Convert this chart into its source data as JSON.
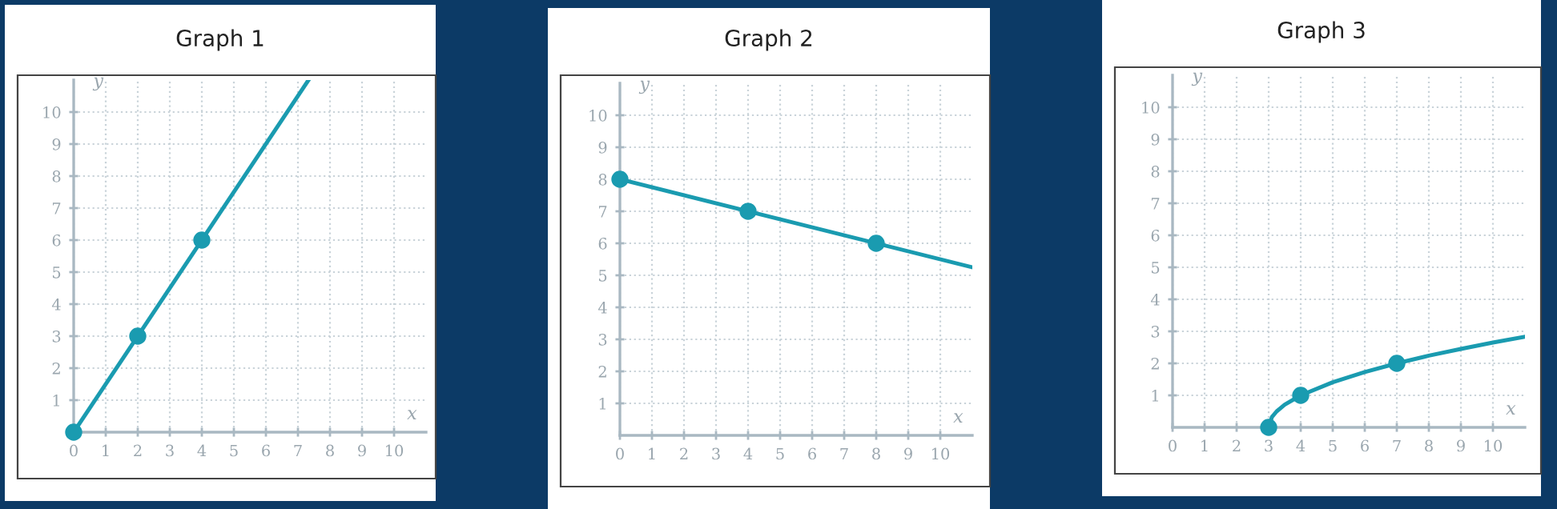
{
  "chart_data": [
    {
      "type": "line",
      "title": "Graph 1",
      "xlabel": "x",
      "ylabel": "y",
      "xlim": [
        0,
        11
      ],
      "ylim": [
        0,
        11
      ],
      "xticks": [
        0,
        1,
        2,
        3,
        4,
        5,
        6,
        7,
        8,
        9,
        10
      ],
      "yticks": [
        1,
        2,
        3,
        4,
        5,
        6,
        7,
        8,
        9,
        10
      ],
      "grid": true,
      "series": [
        {
          "color": "#1a9bb0",
          "x": [
            0,
            7.33
          ],
          "values": [
            0,
            11
          ]
        },
        {
          "type": "scatter",
          "color": "#1a9bb0",
          "marker": "circle",
          "x": [
            0,
            2,
            4
          ],
          "values": [
            0,
            3,
            6
          ]
        }
      ]
    },
    {
      "type": "line",
      "title": "Graph 2",
      "xlabel": "x",
      "ylabel": "y",
      "xlim": [
        0,
        11
      ],
      "ylim": [
        0,
        11
      ],
      "xticks": [
        0,
        1,
        2,
        3,
        4,
        5,
        6,
        7,
        8,
        9,
        10
      ],
      "yticks": [
        1,
        2,
        3,
        4,
        5,
        6,
        7,
        8,
        9,
        10
      ],
      "grid": true,
      "series": [
        {
          "color": "#1a9bb0",
          "x": [
            0,
            11
          ],
          "values": [
            8,
            5.25
          ]
        },
        {
          "type": "scatter",
          "color": "#1a9bb0",
          "marker": "circle",
          "x": [
            0,
            4,
            8
          ],
          "values": [
            8,
            7,
            6
          ]
        }
      ]
    },
    {
      "type": "line",
      "title": "Graph 3",
      "xlabel": "x",
      "ylabel": "y",
      "xlim": [
        0,
        11
      ],
      "ylim": [
        0,
        11
      ],
      "xticks": [
        0,
        1,
        2,
        3,
        4,
        5,
        6,
        7,
        8,
        9,
        10
      ],
      "yticks": [
        1,
        2,
        3,
        4,
        5,
        6,
        7,
        8,
        9,
        10
      ],
      "grid": true,
      "series": [
        {
          "color": "#1a9bb0",
          "x": [
            3,
            3.1,
            3.25,
            3.5,
            4,
            5,
            6,
            7,
            8,
            9,
            10,
            11
          ],
          "values": [
            0,
            0.32,
            0.5,
            0.71,
            1,
            1.41,
            1.73,
            2,
            2.24,
            2.45,
            2.65,
            2.83
          ]
        },
        {
          "type": "scatter",
          "color": "#1a9bb0",
          "marker": "circle",
          "x": [
            3,
            4,
            7
          ],
          "values": [
            0,
            1,
            2
          ]
        }
      ]
    }
  ]
}
